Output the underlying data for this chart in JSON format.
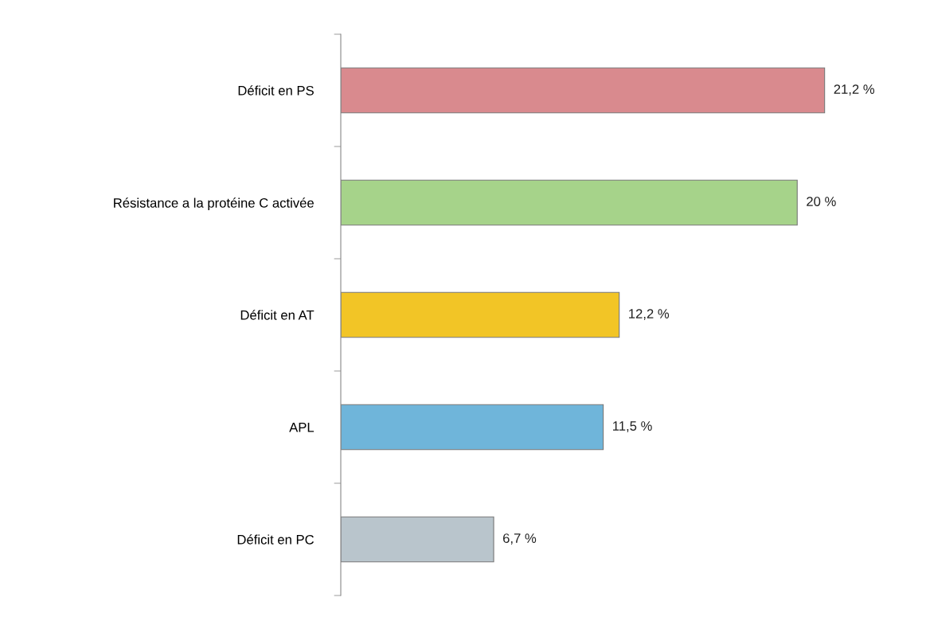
{
  "chart_data": {
    "type": "bar",
    "orientation": "horizontal",
    "categories": [
      "Déficit en PS",
      "Résistance a la protéine C activée",
      "Déficit en AT",
      "APL",
      "Déficit en PC"
    ],
    "values": [
      21.2,
      20,
      12.2,
      11.5,
      6.7
    ],
    "colors": [
      "#d98a8e",
      "#a6d38a",
      "#f2c526",
      "#6fb5da",
      "#b9c5cc"
    ],
    "value_labels": [
      "21,2 %",
      "20 %",
      "12,2 %",
      "11,5 %",
      "6,7 %"
    ]
  }
}
